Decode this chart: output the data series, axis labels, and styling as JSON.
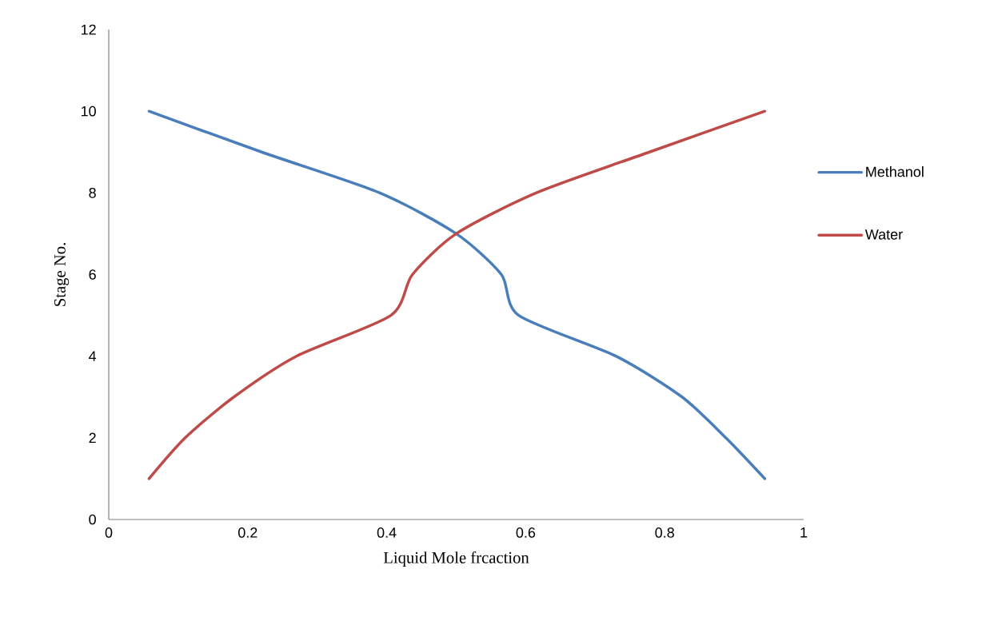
{
  "chart_data": {
    "type": "line",
    "xlabel": "Liquid Mole frcaction",
    "ylabel": "Stage No.",
    "series": [
      {
        "name": "Methanol",
        "color": "#4a7ebb",
        "x": [
          0.058,
          0.22,
          0.39,
          0.5,
          0.565,
          0.59,
          0.73,
          0.825,
          0.888,
          0.944
        ],
        "values": [
          10,
          9,
          8,
          7,
          6,
          5,
          4,
          3,
          2,
          1
        ]
      },
      {
        "name": "Water",
        "color": "#be4b48",
        "x": [
          0.058,
          0.11,
          0.18,
          0.27,
          0.406,
          0.437,
          0.5,
          0.615,
          0.778,
          0.944
        ],
        "values": [
          1,
          2,
          3,
          4,
          5,
          6,
          7,
          8,
          9,
          10
        ]
      }
    ],
    "xlim": [
      0,
      1
    ],
    "xticks": [
      0,
      0.2,
      0.4,
      0.6,
      0.8,
      1
    ],
    "ylim": [
      0,
      12
    ],
    "yticks": [
      0,
      2,
      4,
      6,
      8,
      10,
      12
    ],
    "grid": false,
    "legend": "right",
    "marker": "none",
    "line_style": "solid"
  }
}
